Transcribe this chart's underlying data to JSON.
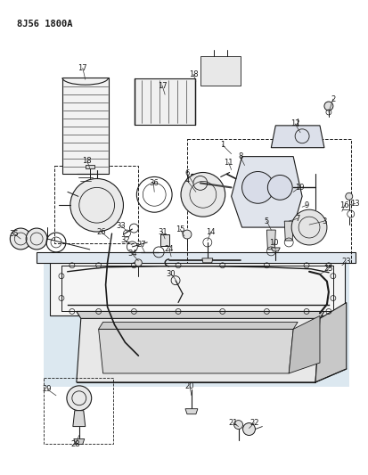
{
  "title": "8J56 1800A",
  "bg_color": "#ffffff",
  "line_color": "#1a1a1a",
  "fig_width": 4.13,
  "fig_height": 5.33,
  "dpi": 100
}
